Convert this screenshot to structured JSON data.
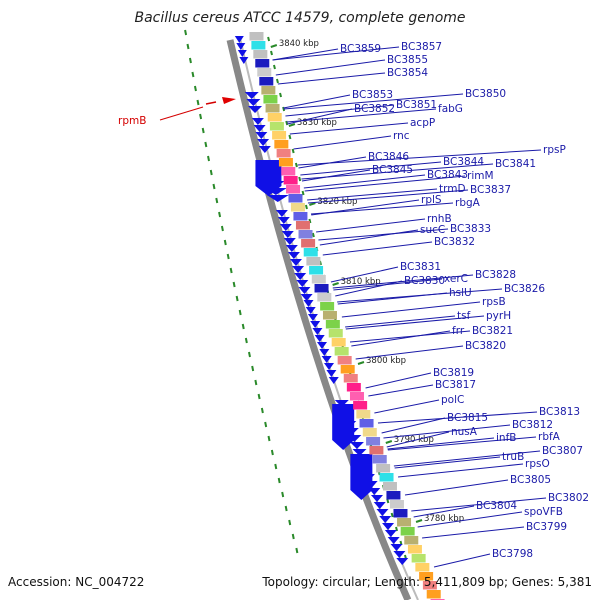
{
  "header": {
    "title": "Bacillus cereus ATCC 14579, complete genome"
  },
  "footer": {
    "accession": "Accession: NC_004722",
    "summary": "Topology: circular; Length: 5,411,809 bp; Genes: 5,381"
  },
  "colors": {
    "label": "#1a1aa8",
    "highlight": "#d40000",
    "arrow": "#1010e6",
    "backbone": "#888888",
    "skew": "#228822"
  },
  "kbp_labels": [
    {
      "text": "3840 kbp"
    },
    {
      "text": "3830 kbp"
    },
    {
      "text": "3820 kbp"
    },
    {
      "text": "3810 kbp"
    },
    {
      "text": "3800 kbp"
    },
    {
      "text": "3790 kbp"
    },
    {
      "text": "3780 kbp"
    }
  ],
  "highlight": {
    "text": "rpmB"
  },
  "genes": [
    "BC3859",
    "BC3857",
    "BC3855",
    "BC3854",
    "BC3853",
    "BC3852",
    "BC3851",
    "fabG",
    "BC3850",
    "acpP",
    "rnc",
    "rpsP",
    "BC3846",
    "BC3844",
    "BC3841",
    "BC3845",
    "BC3843",
    "rimM",
    "trmD",
    "BC3837",
    "rplS",
    "rbgA",
    "rnhB",
    "sucC",
    "BC3833",
    "BC3832",
    "BC3831",
    "xerC",
    "BC3828",
    "BC3830",
    "hslU",
    "BC3826",
    "rpsB",
    "tsf",
    "pyrH",
    "frr",
    "BC3821",
    "BC3820",
    "BC3819",
    "BC3817",
    "polC",
    "BC3815",
    "BC3813",
    "BC3812",
    "nusA",
    "infB",
    "rbfA",
    "BC3807",
    "truB",
    "rpsO",
    "BC3805",
    "BC3804",
    "BC3802",
    "spoVFB",
    "BC3799",
    "BC3798"
  ]
}
